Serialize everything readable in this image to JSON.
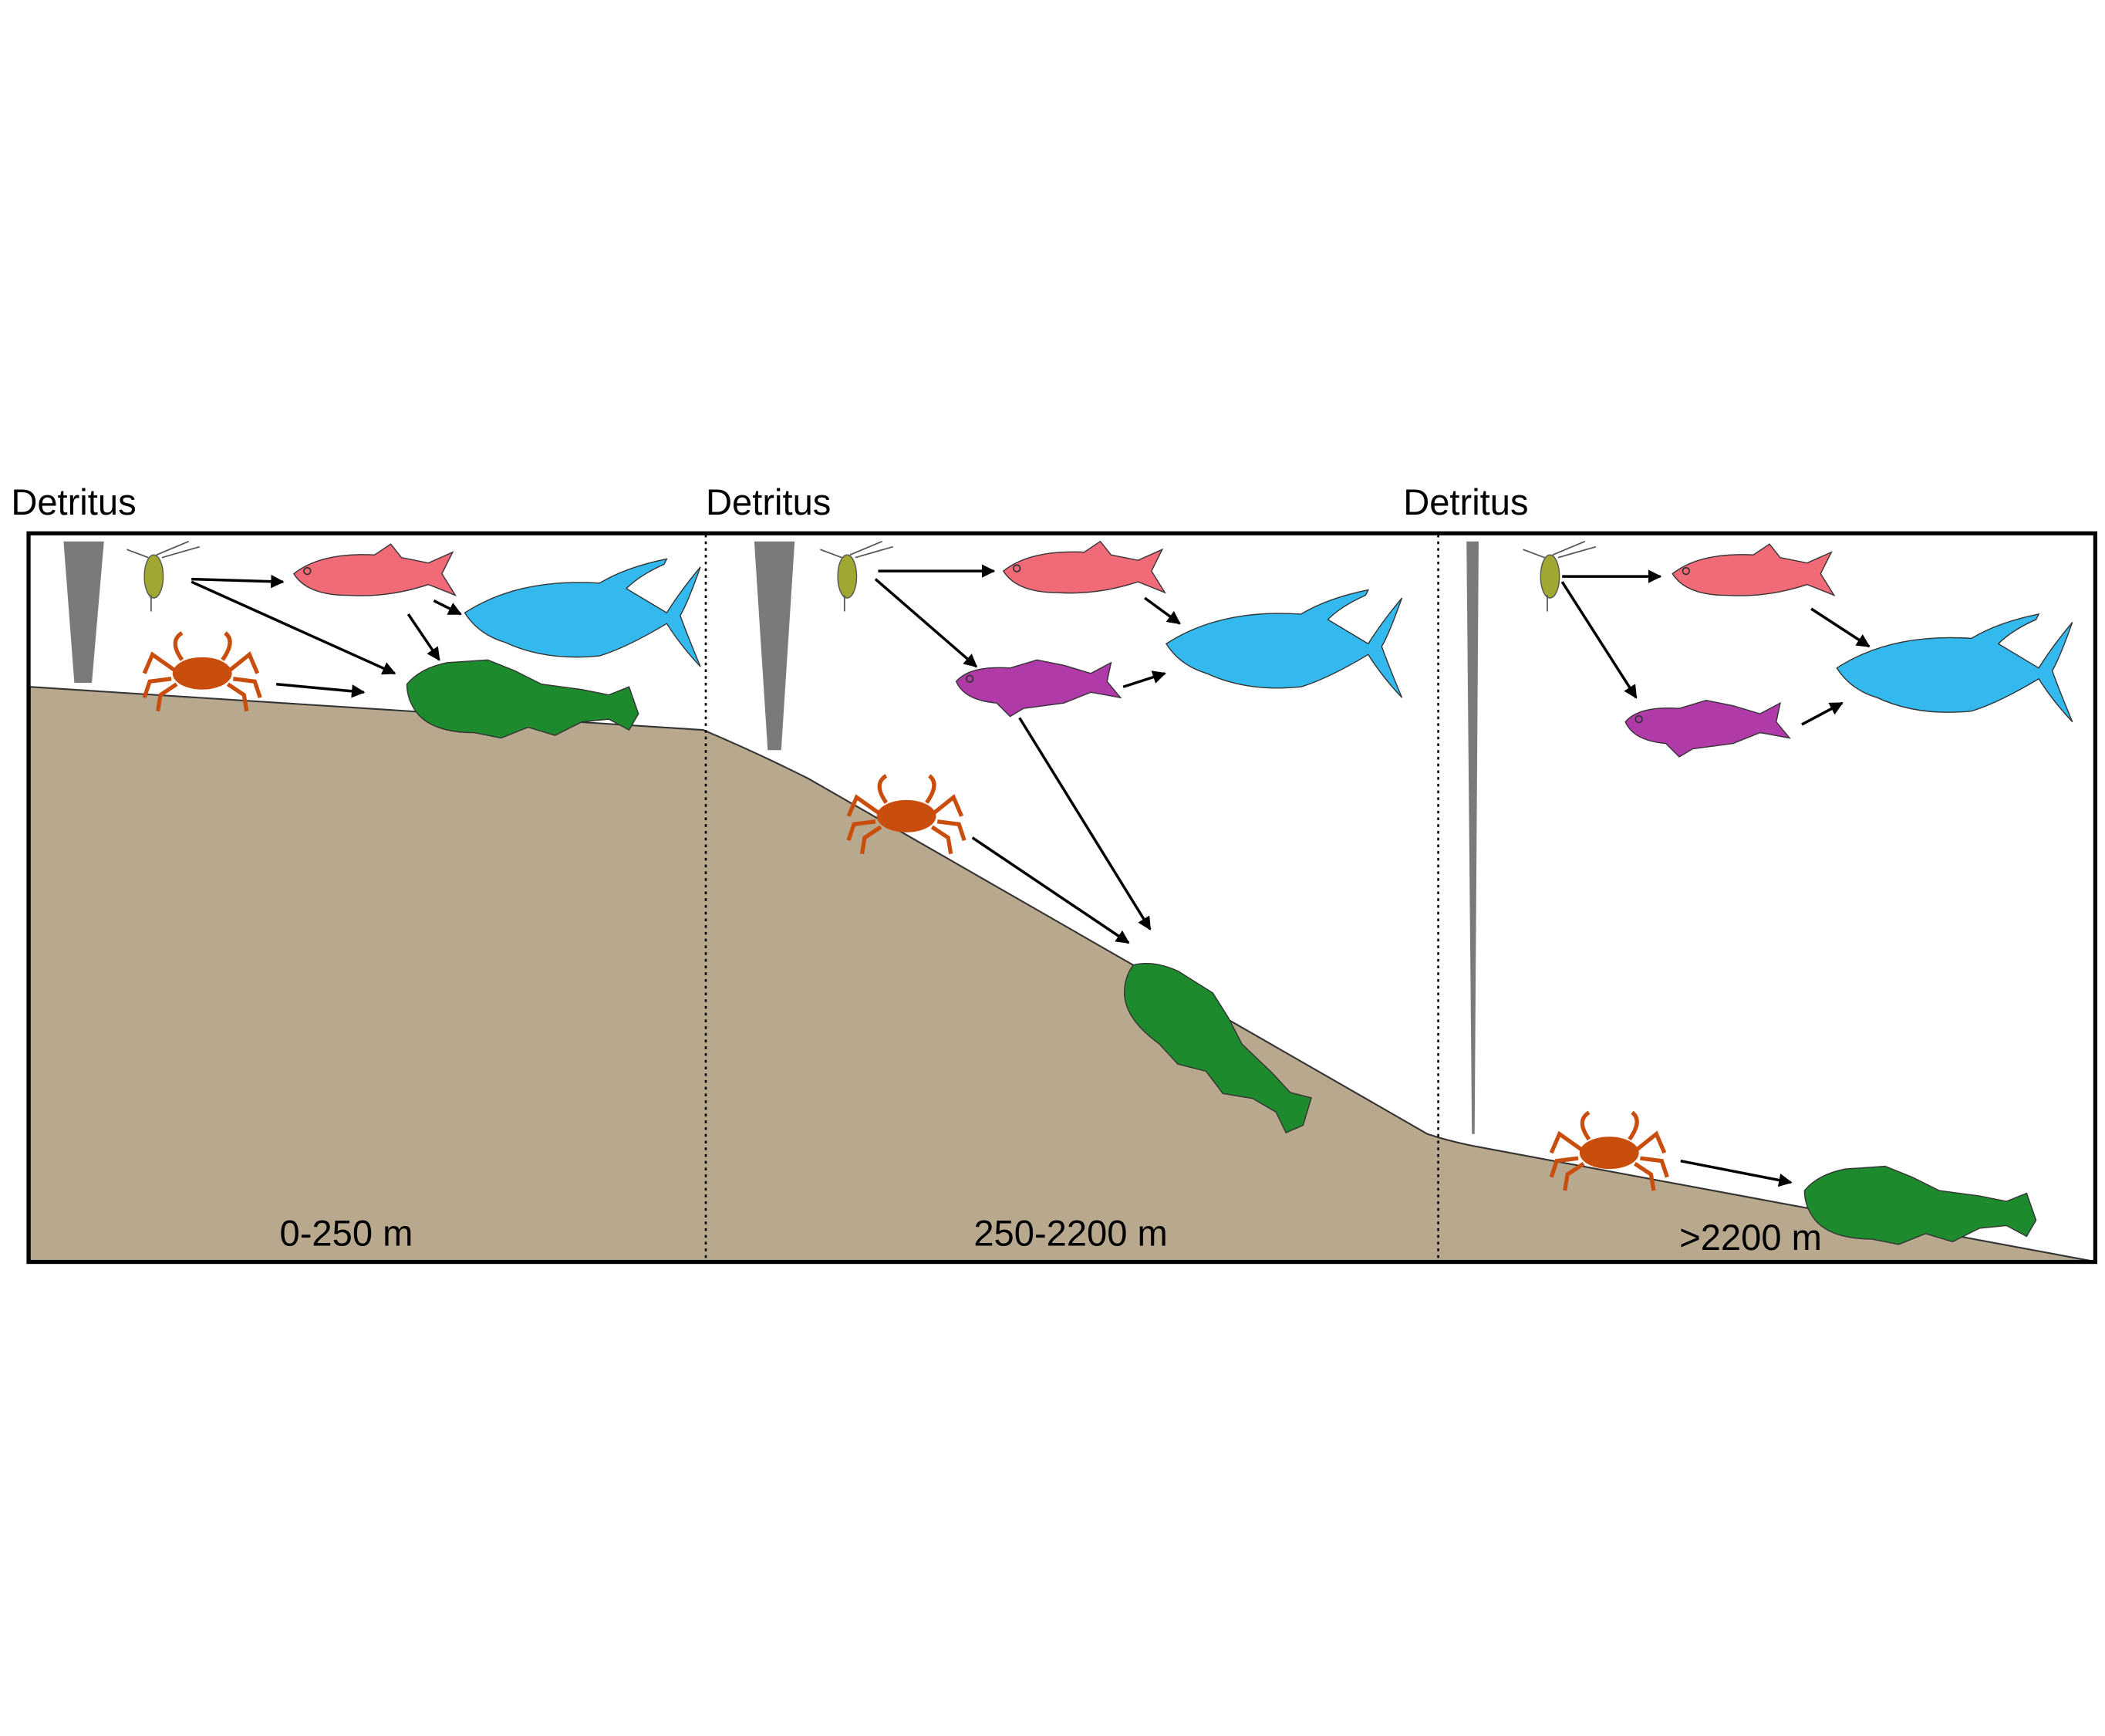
{
  "panels": [
    {
      "source": "Detritus",
      "depth": "0-250 m"
    },
    {
      "source": "Detritus",
      "depth": "250-2200 m"
    },
    {
      "source": "Detritus",
      "depth": ">2200 m"
    }
  ]
}
